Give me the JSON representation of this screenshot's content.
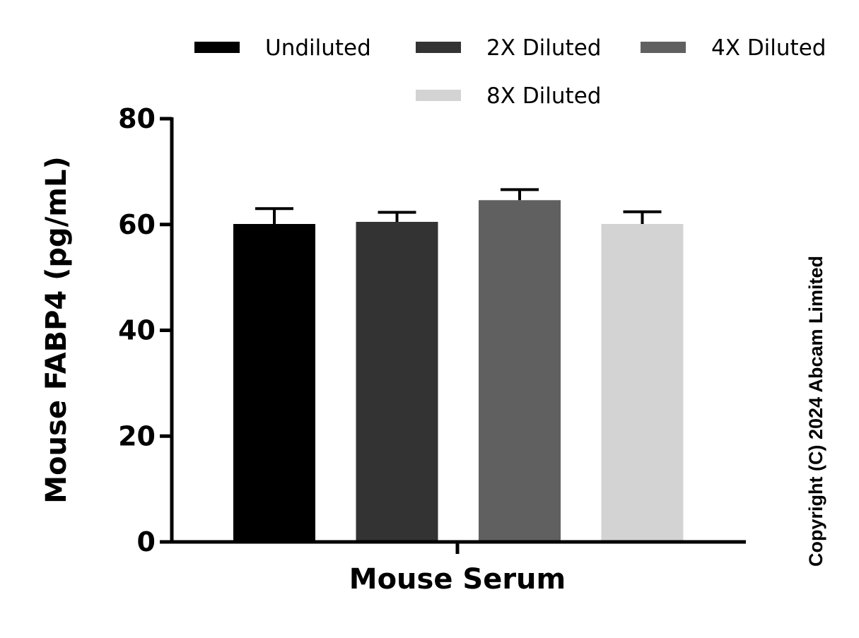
{
  "chart_data": {
    "type": "bar",
    "categories": [
      "Mouse Serum"
    ],
    "series": [
      {
        "name": "Undiluted",
        "values": [
          60.1
        ],
        "error": [
          2.9
        ],
        "color": "#000000"
      },
      {
        "name": "2X Diluted",
        "values": [
          60.5
        ],
        "error": [
          1.8
        ],
        "color": "#333333"
      },
      {
        "name": "4X Diluted",
        "values": [
          64.6
        ],
        "error": [
          2.0
        ],
        "color": "#606060"
      },
      {
        "name": "8X Diluted",
        "values": [
          60.1
        ],
        "error": [
          2.3
        ],
        "color": "#d3d3d3"
      }
    ],
    "xlabel": "Mouse Serum",
    "ylabel": "Mouse FABP4 (pg/mL)",
    "ylim": [
      0,
      80
    ],
    "yticks": [
      "0",
      "20",
      "40",
      "60",
      "80"
    ],
    "grid": false,
    "legend_position": "top"
  },
  "copyright": "Copyright (C) 2024 Abcam Limited"
}
